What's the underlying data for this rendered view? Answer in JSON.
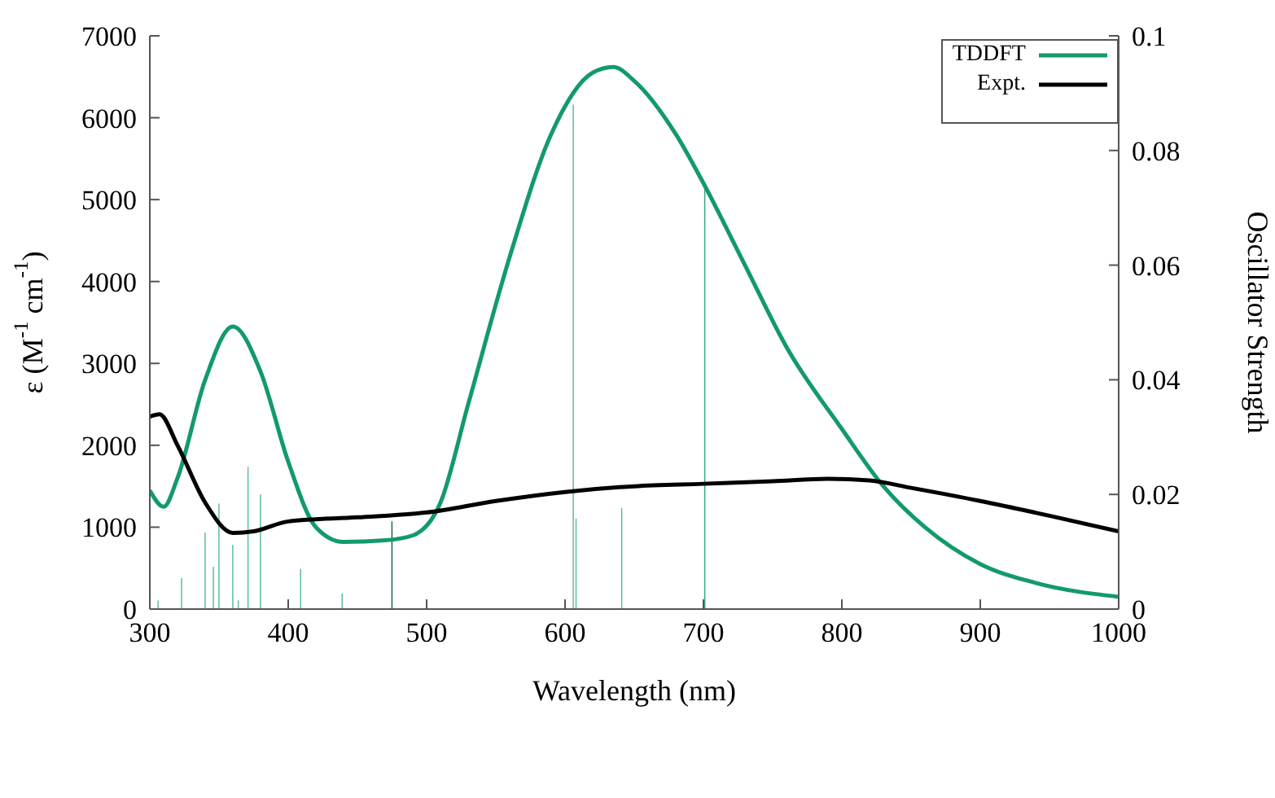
{
  "chart_data": {
    "type": "line",
    "xlabel": "Wavelength (nm)",
    "ylabel": "ε (M$^{-1}$ cm$^{-1}$)",
    "y2label": "Oscillator Strength",
    "xlim": [
      300,
      1000
    ],
    "xticks": [
      300,
      400,
      500,
      600,
      700,
      800,
      900,
      1000
    ],
    "ylim": [
      0,
      7000
    ],
    "yticks": [
      0,
      1000,
      2000,
      3000,
      4000,
      5000,
      6000,
      7000
    ],
    "y2lim": [
      0,
      0.1
    ],
    "y2ticks": [
      0,
      0.02,
      0.04,
      0.06,
      0.08,
      0.1
    ],
    "legend": "top right",
    "grid": false,
    "marker": "none",
    "line_style": "solid",
    "series": [
      {
        "name": "TDDFT",
        "color": "#13996f",
        "x": [
          300,
          310,
          320,
          340,
          360,
          380,
          400,
          420,
          440,
          470,
          490,
          510,
          530,
          560,
          590,
          620,
          635,
          650,
          680,
          700,
          730,
          760,
          800,
          830,
          860,
          900,
          940,
          1000
        ],
        "values": [
          1450,
          1250,
          1600,
          2800,
          3450,
          2900,
          1800,
          1000,
          820,
          840,
          900,
          1300,
          2500,
          4300,
          5800,
          6550,
          6620,
          6450,
          5800,
          5200,
          4200,
          3200,
          2200,
          1500,
          1000,
          550,
          320,
          150
        ]
      },
      {
        "name": "Expt.",
        "color": "#000000",
        "x": [
          300,
          307,
          320,
          340,
          360,
          375,
          400,
          450,
          500,
          550,
          600,
          650,
          700,
          750,
          790,
          820,
          850,
          900,
          950,
          1000
        ],
        "values": [
          2350,
          2380,
          2000,
          1300,
          930,
          950,
          1070,
          1120,
          1180,
          1320,
          1430,
          1500,
          1530,
          1560,
          1590,
          1570,
          1480,
          1320,
          1140,
          950
        ]
      },
      {
        "type": "bar",
        "axis": "y2",
        "x": [
          306,
          318,
          323,
          327,
          340,
          346,
          350,
          360,
          364,
          371,
          380,
          409,
          439,
          475,
          547,
          606,
          608,
          641,
          701
        ],
        "values": [
          0.0015,
          null,
          0.0054,
          null,
          0.0134,
          0.0074,
          0.0184,
          0.0112,
          0.0015,
          0.0248,
          0.02,
          0.007,
          0.0027,
          0.0153,
          null,
          0.088,
          0.0158,
          0.0176,
          0.074
        ],
        "colors": [
          "#5fbf9c",
          "#5fbf9c",
          "#5fbf9c",
          "#5fbf9c",
          "#5fbf9c",
          "#5fbf9c",
          "#5fbf9c",
          "#5fbf9c",
          "#5fbf9c",
          "#5fbf9c",
          "#5fbf9c",
          "#5fbf9c",
          "#5fbf9c",
          "#1c6e52",
          "#5fbf9c",
          "#5fbf9c",
          "#5fbf9c",
          "#5fbf9c",
          "#3aa882"
        ]
      }
    ]
  }
}
